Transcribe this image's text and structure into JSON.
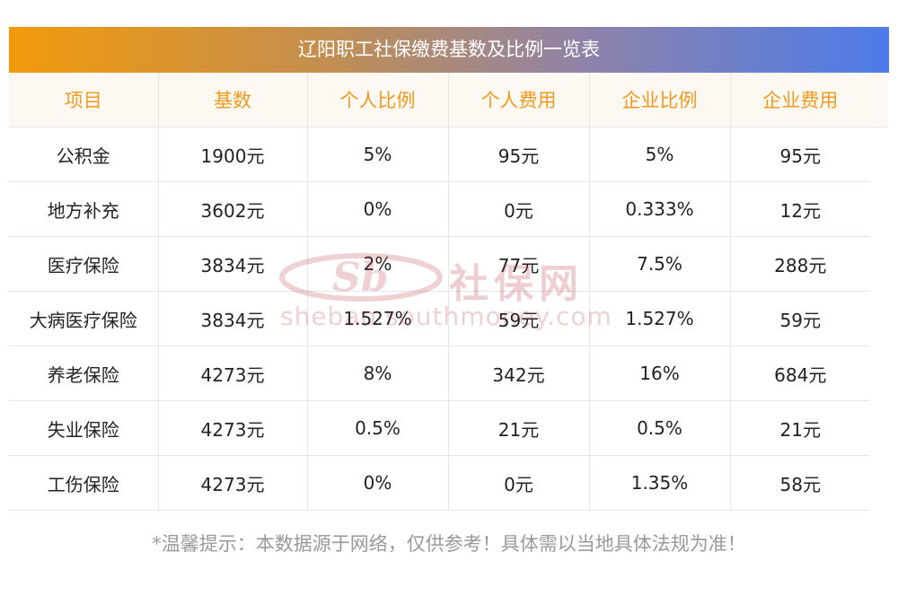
{
  "title": "辽阳职工社保缴费基数及比例一览表",
  "headers": [
    "项目",
    "基数",
    "个人比例",
    "个人费用",
    "企业比例",
    "企业费用"
  ],
  "rows": [
    [
      "公积金",
      "1900元",
      "5%",
      "95元",
      "5%",
      "95元"
    ],
    [
      "地方补充",
      "3602元",
      "0%",
      "0元",
      "0.333%",
      "12元"
    ],
    [
      "医疗保险",
      "3834元",
      "2%",
      "77元",
      "7.5%",
      "288元"
    ],
    [
      "大病医疗保险",
      "3834元",
      "1.527%",
      "59元",
      "1.527%",
      "59元"
    ],
    [
      "养老保险",
      "4273元",
      "8%",
      "342元",
      "16%",
      "684元"
    ],
    [
      "失业保险",
      "4273元",
      "0.5%",
      "21元",
      "0.5%",
      "21元"
    ],
    [
      "工伤保险",
      "4273元",
      "0%",
      "0元",
      "1.35%",
      "58元"
    ]
  ],
  "watermark": {
    "logo_text": "Sb",
    "name": "社保网",
    "url": "shebao.southmoney.com"
  },
  "footnote": "*温馨提示：本数据源于网络，仅供参考！具体需以当地具体法规为准！",
  "colors": {
    "title_gradient_start": "#f39a0b",
    "title_gradient_end": "#4d7bea",
    "header_text": "#f29a1e",
    "header_bg": "#fdf8f1",
    "footnote_text": "#999999"
  }
}
